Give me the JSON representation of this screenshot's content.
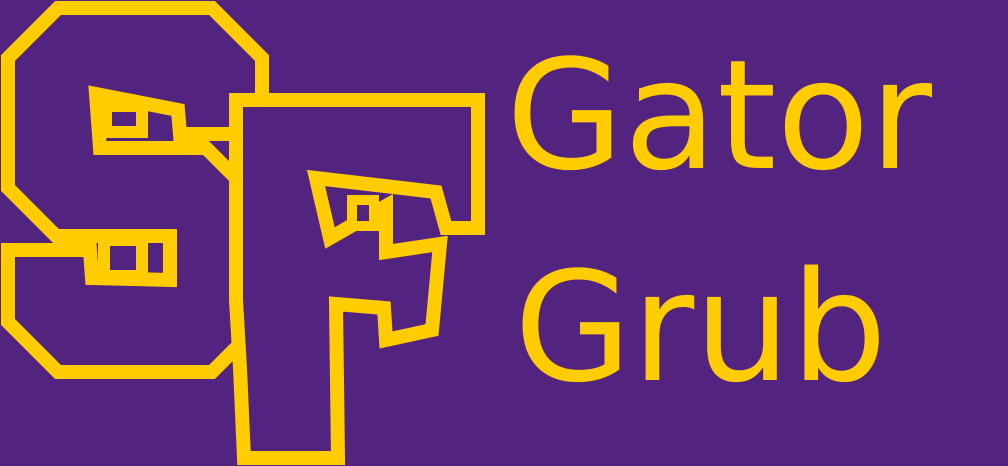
{
  "banner": {
    "logo_text": "SF",
    "title_line_1": "Gator",
    "title_line_2": "Grub"
  },
  "colors": {
    "background": "#53247f",
    "accent": "#ffcc00"
  },
  "icons": {
    "logo": "sf-monogram-logo"
  }
}
